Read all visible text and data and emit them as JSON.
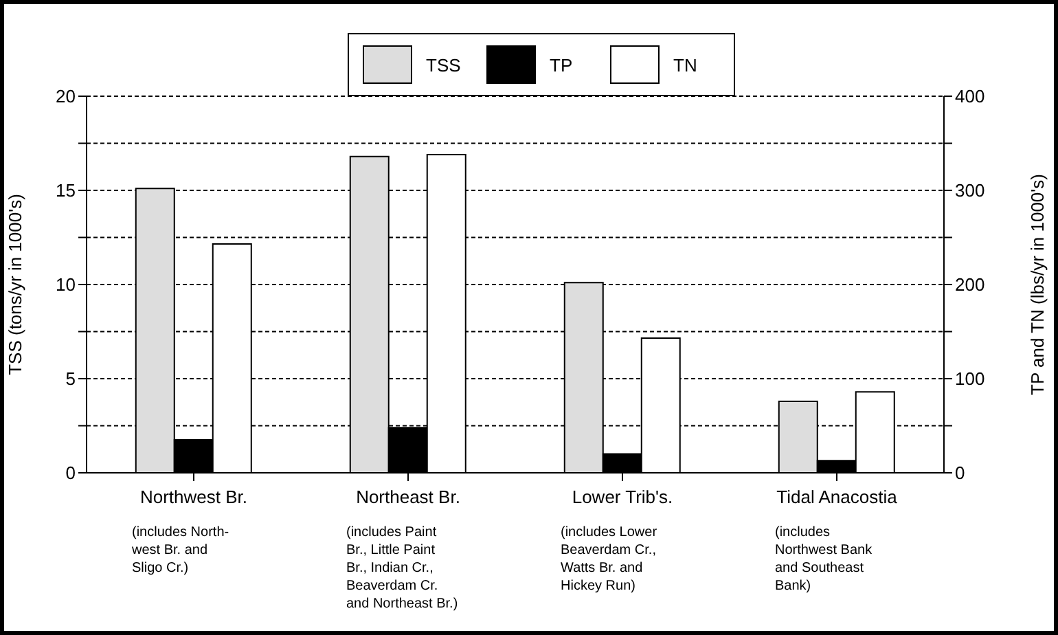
{
  "chart_data": {
    "type": "bar",
    "ylabel": "TSS (tons/yr in 1000's)",
    "y2label": "TP and TN (lbs/yr in 1000's)",
    "categories": [
      "Northwest Br.",
      "Northeast Br.",
      "Lower Trib's.",
      "Tidal Anacostia"
    ],
    "annotations": [
      "(includes North-\nwest Br. and\nSligo Cr.)",
      "(includes Paint\nBr., Little Paint\nBr., Indian Cr.,\nBeaverdam Cr.\nand Northeast Br.)",
      "(includes Lower\nBeaverdam Cr.,\nWatts Br. and\nHickey Run)",
      "(includes\nNorthwest Bank\nand Southeast\nBank)"
    ],
    "series": [
      {
        "name": "TSS",
        "color": "#dddddd",
        "values": [
          15.1,
          16.8,
          10.1,
          3.8
        ]
      },
      {
        "name": "TP",
        "color": "#000000",
        "axis": "y2",
        "values": [
          35,
          48,
          20,
          13
        ]
      },
      {
        "name": "TN",
        "color": "#ffffff",
        "axis": "y2",
        "values": [
          243,
          338,
          143,
          86
        ]
      }
    ],
    "ylim": [
      0,
      20
    ],
    "yticks": [
      0,
      {
        "value": 2.5,
        "label": null
      },
      5,
      {
        "value": 7.5,
        "label": null
      },
      10,
      {
        "value": 12.5,
        "label": null
      },
      15,
      {
        "value": 17.5,
        "label": null
      },
      20
    ],
    "y2lim": [
      0,
      400
    ],
    "y2ticks": [
      0,
      {
        "value": 50,
        "label": null
      },
      100,
      {
        "value": 150,
        "label": null
      },
      200,
      {
        "value": 250,
        "label": null
      },
      300,
      {
        "value": 350,
        "label": null
      },
      400
    ],
    "grid": "y",
    "legend": "top"
  }
}
